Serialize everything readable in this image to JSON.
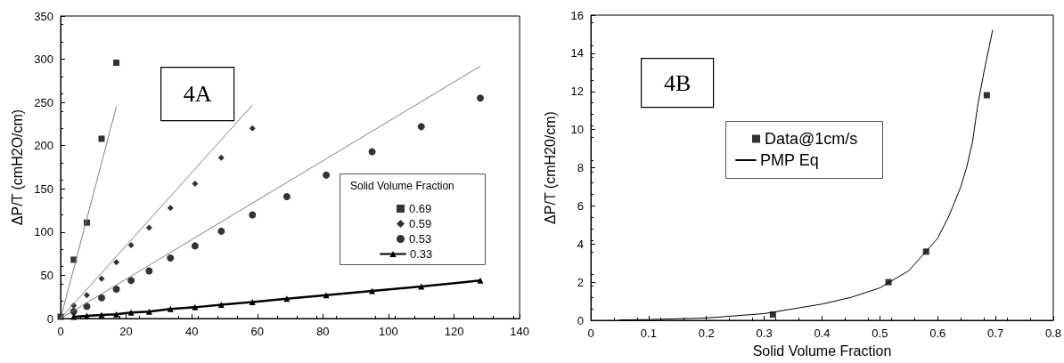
{
  "chart_data": [
    {
      "type": "scatter",
      "ylabel": "ΔP/T (cmH2O/cm)",
      "legend_title": "Solid Volume Fraction",
      "legend": "right",
      "annotations": [
        "4A"
      ],
      "xlim": [
        0,
        140
      ],
      "xticks": [
        0,
        20,
        40,
        60,
        80,
        100,
        120,
        140
      ],
      "ylim": [
        0,
        350
      ],
      "yticks": [
        0,
        50,
        100,
        150,
        200,
        250,
        300,
        350
      ],
      "series": [
        {
          "name": "0.69",
          "type": "scatter",
          "marker": "square",
          "color": "#000000",
          "x": [
            0,
            4,
            8,
            12.5,
            17
          ],
          "values": [
            2,
            68,
            111,
            208,
            296
          ]
        },
        {
          "name": "0.59",
          "type": "scatter",
          "marker": "diamond",
          "color": "#000000",
          "x": [
            4,
            8,
            12.5,
            17,
            21.5,
            27,
            33.5,
            41,
            49,
            58.5
          ],
          "values": [
            15,
            27,
            46,
            65,
            85,
            105,
            128,
            156,
            186,
            220
          ]
        },
        {
          "name": "0.53",
          "type": "scatter",
          "marker": "circle",
          "color": "#000000",
          "x": [
            4,
            8,
            12.5,
            17,
            21.5,
            27,
            33.5,
            41,
            49,
            58.5,
            69,
            81,
            95,
            110,
            128
          ],
          "values": [
            8,
            14,
            24,
            34,
            44,
            55,
            70,
            84,
            101,
            120,
            141,
            166,
            193,
            222,
            255
          ]
        },
        {
          "name": "0.33",
          "type": "line",
          "marker": "triangle",
          "line_style": "solid",
          "color": "#000000",
          "x": [
            4,
            8,
            12.5,
            17,
            21.5,
            27,
            33.5,
            41,
            49,
            58.5,
            69,
            81,
            95,
            110,
            128
          ],
          "values": [
            2,
            3,
            4,
            5,
            7,
            8,
            11,
            13,
            16,
            19,
            23,
            27,
            32,
            37,
            44
          ]
        },
        {
          "type": "line",
          "marker": "none",
          "line_style": "solid",
          "color": "#808080",
          "x": [
            0,
            17
          ],
          "values": [
            0,
            245
          ]
        },
        {
          "type": "line",
          "marker": "none",
          "line_style": "solid",
          "color": "#808080",
          "x": [
            0,
            58.5
          ],
          "values": [
            0,
            247
          ]
        },
        {
          "type": "line",
          "marker": "none",
          "line_style": "solid",
          "color": "#808080",
          "x": [
            0,
            128
          ],
          "values": [
            0,
            292
          ]
        }
      ]
    },
    {
      "type": "scatter",
      "xlabel": "Solid Volume Fraction",
      "ylabel": "ΔP/T (cmH20/cm)",
      "legend": "top left",
      "annotations": [
        "4B"
      ],
      "xlim": [
        0,
        0.8
      ],
      "xticks": [
        0,
        0.1,
        0.2,
        0.3,
        0.4,
        0.5,
        0.6,
        0.7,
        0.8
      ],
      "ylim": [
        0,
        16
      ],
      "yticks": [
        0,
        2,
        4,
        6,
        8,
        10,
        12,
        14,
        16
      ],
      "series": [
        {
          "name": "Data@1cm/s",
          "type": "scatter",
          "marker": "square",
          "color": "#000000",
          "x": [
            0.315,
            0.515,
            0.58,
            0.685
          ],
          "values": [
            0.3,
            2.0,
            3.6,
            11.8
          ]
        },
        {
          "name": "PMP Eq",
          "type": "line",
          "marker": "none",
          "line_style": "solid",
          "color": "#000000",
          "x": [
            0.05,
            0.1,
            0.2,
            0.3,
            0.4,
            0.45,
            0.5,
            0.55,
            0.6,
            0.62,
            0.64,
            0.65,
            0.66,
            0.67,
            0.68,
            0.695
          ],
          "values": [
            0.02,
            0.04,
            0.12,
            0.35,
            0.85,
            1.2,
            1.7,
            2.6,
            4.3,
            5.5,
            7.0,
            8.0,
            9.3,
            11.4,
            13.0,
            15.2
          ]
        }
      ]
    }
  ]
}
